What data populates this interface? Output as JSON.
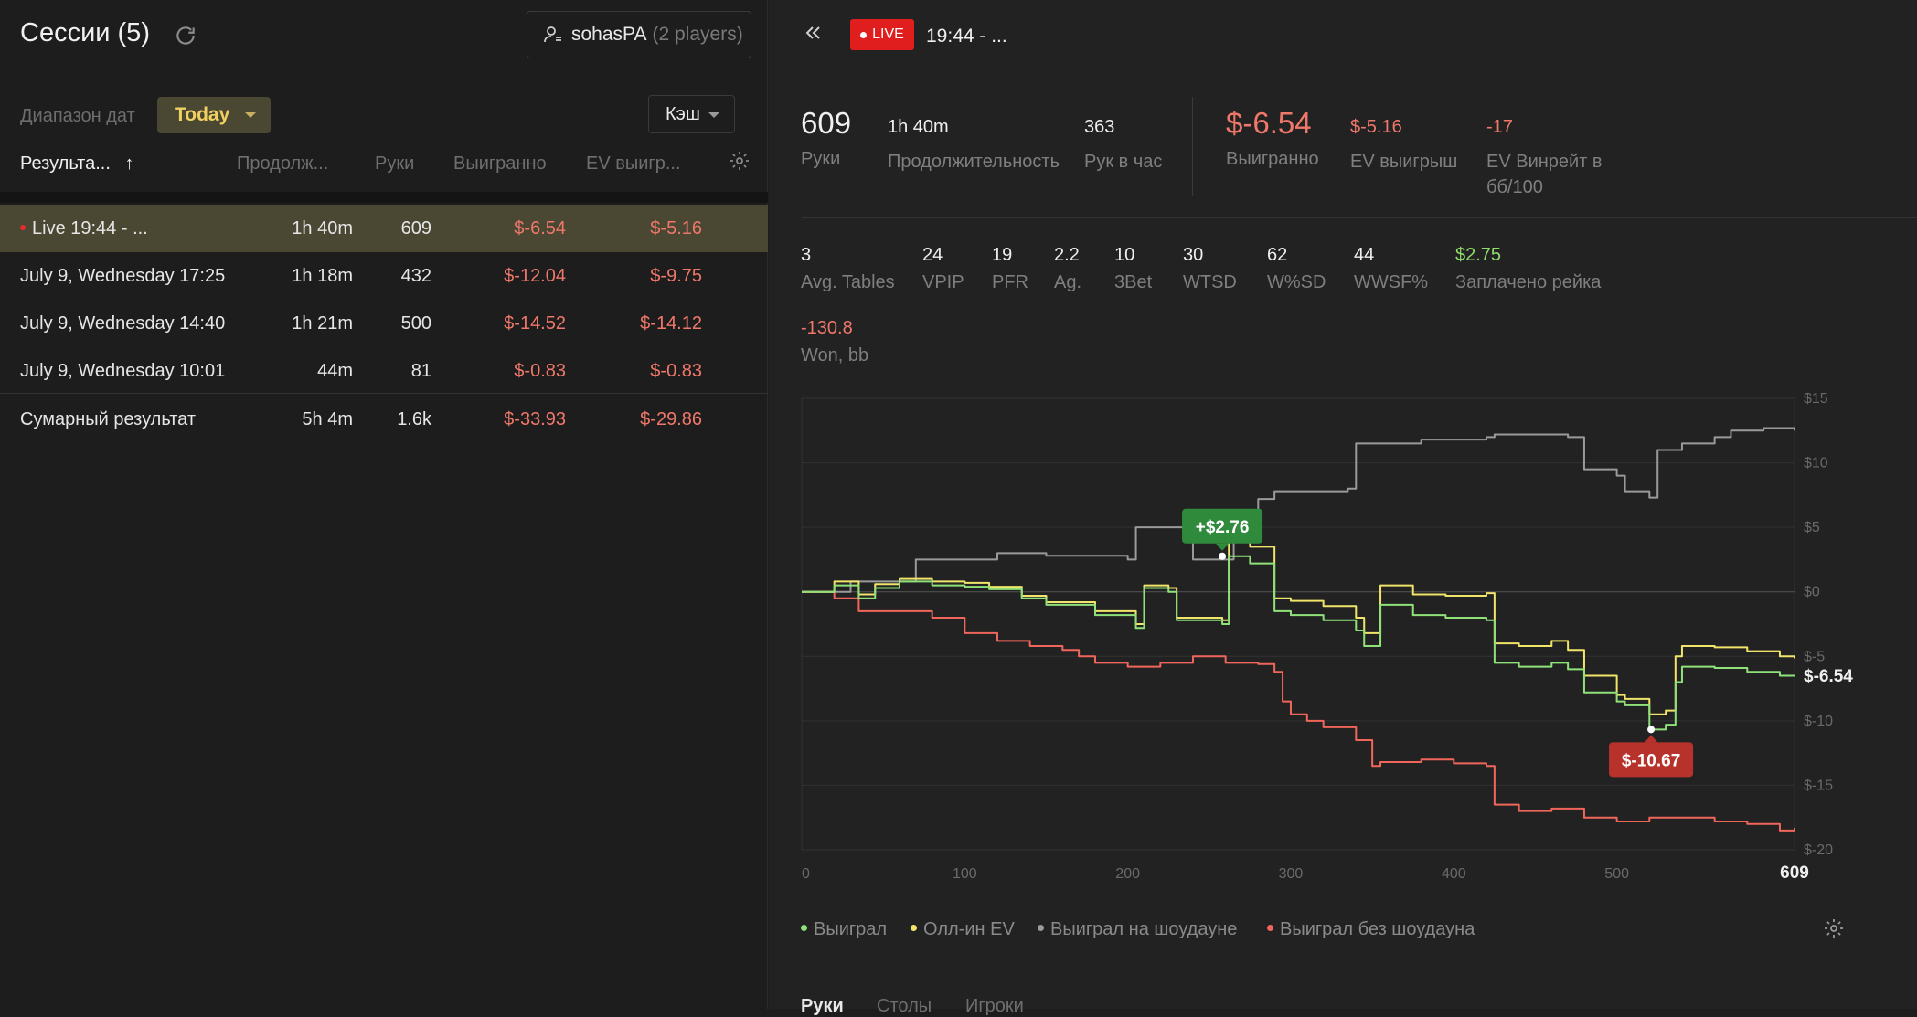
{
  "sessions": {
    "title": "Сессии (5)",
    "player": {
      "name": "sohasPA",
      "count": "(2 players)"
    },
    "date_range_label": "Диапазон дат",
    "date_range_value": "Today",
    "game_type": "Кэш",
    "columns": [
      "Результа...",
      "Продолж...",
      "Руки",
      "Выигранно",
      "EV выигр..."
    ],
    "sort_indicator": "↑",
    "rows": [
      {
        "name": "Live 19:44 - ...",
        "duration": "1h 40m",
        "hands": "609",
        "won": "$-6.54",
        "ev": "$-5.16"
      },
      {
        "name": "July 9, Wednesday 17:25",
        "duration": "1h 18m",
        "hands": "432",
        "won": "$-12.04",
        "ev": "$-9.75"
      },
      {
        "name": "July 9, Wednesday 14:40",
        "duration": "1h 21m",
        "hands": "500",
        "won": "$-14.52",
        "ev": "$-14.12"
      },
      {
        "name": "July 9, Wednesday 10:01",
        "duration": "44m",
        "hands": "81",
        "won": "$-0.83",
        "ev": "$-0.83"
      }
    ],
    "total": {
      "name": "Сумарный результат",
      "duration": "5h 4m",
      "hands": "1.6k",
      "won": "$-33.93",
      "ev": "$-29.86"
    }
  },
  "detail": {
    "live_label": "LIVE",
    "session_title": "19:44 - ...",
    "top_stats": [
      {
        "value": "609",
        "label": "Руки"
      },
      {
        "value": "1h 40m",
        "label": "Продолжительность"
      },
      {
        "value": "363",
        "label": "Рук в час"
      },
      {
        "value": "$-6.54",
        "label": "Выигранно"
      },
      {
        "value": "$-5.16",
        "label": "EV выигрыш"
      },
      {
        "value": "-17",
        "label": "EV Винрейт в бб/100"
      }
    ],
    "mid_stats": [
      {
        "value": "3",
        "label": "Avg. Tables"
      },
      {
        "value": "24",
        "label": "VPIP"
      },
      {
        "value": "19",
        "label": "PFR"
      },
      {
        "value": "2.2",
        "label": "Ag."
      },
      {
        "value": "10",
        "label": "3Bet"
      },
      {
        "value": "30",
        "label": "WTSD"
      },
      {
        "value": "62",
        "label": "W%SD"
      },
      {
        "value": "44",
        "label": "WWSF%"
      },
      {
        "value": "$2.75",
        "label": "Заплачено рейка"
      }
    ],
    "won_bb": {
      "value": "-130.8",
      "label": "Won, bb"
    },
    "legend": [
      {
        "name": "Выиграл",
        "color": "#8fe27a"
      },
      {
        "name": "Олл-ин EV",
        "color": "#f0e46a"
      },
      {
        "name": "Выиграл на шоудауне",
        "color": "#9a9a9a"
      },
      {
        "name": "Выиграл без шоудауна",
        "color": "#f0665a"
      }
    ],
    "tabs": [
      "Руки",
      "Столы",
      "Игроки"
    ]
  },
  "chart_data": {
    "type": "line",
    "xlabel": "",
    "ylabel": "",
    "xlim": [
      0,
      609
    ],
    "ylim": [
      -20,
      15
    ],
    "x_ticks": [
      "0",
      "100",
      "200",
      "300",
      "400",
      "500",
      "609"
    ],
    "y_ticks": [
      "$15",
      "$10",
      "$5",
      "$0",
      "$-5",
      "$-10",
      "$-15",
      "$-20"
    ],
    "y_tick_values": [
      15,
      10,
      5,
      0,
      -5,
      -10,
      -15,
      -20
    ],
    "end_label": "$-6.54",
    "annotations": [
      {
        "x": 258,
        "y": 2.76,
        "text": "+$2.76",
        "kind": "max"
      },
      {
        "x": 521,
        "y": -10.67,
        "text": "$-10.67",
        "kind": "min"
      }
    ],
    "series": [
      {
        "name": "Выиграл",
        "color": "#8fe27a",
        "x": [
          0,
          20,
          35,
          45,
          60,
          80,
          100,
          115,
          135,
          150,
          180,
          205,
          210,
          225,
          230,
          258,
          262,
          275,
          290,
          300,
          320,
          340,
          345,
          355,
          375,
          395,
          420,
          425,
          440,
          460,
          470,
          480,
          500,
          505,
          520,
          530,
          536,
          540,
          560,
          580,
          600,
          609
        ],
        "y": [
          0,
          0.5,
          -0.5,
          0.3,
          0.8,
          0.5,
          0.4,
          0.2,
          -0.5,
          -1.0,
          -1.8,
          -2.8,
          0.3,
          0.0,
          -2.2,
          -2.5,
          2.76,
          2.2,
          -1.5,
          -1.8,
          -2.2,
          -3.0,
          -4.2,
          -1.0,
          -1.8,
          -2.0,
          -2.2,
          -5.5,
          -5.8,
          -5.5,
          -6.0,
          -7.8,
          -8.5,
          -8.8,
          -10.67,
          -10.3,
          -7.0,
          -5.8,
          -5.9,
          -6.2,
          -6.5,
          -6.54
        ]
      },
      {
        "name": "Олл-ин EV",
        "color": "#f0e46a",
        "x": [
          0,
          20,
          35,
          45,
          60,
          80,
          100,
          115,
          135,
          150,
          180,
          205,
          210,
          225,
          230,
          258,
          262,
          275,
          290,
          300,
          320,
          340,
          345,
          355,
          375,
          395,
          420,
          425,
          440,
          460,
          470,
          480,
          500,
          505,
          520,
          530,
          536,
          540,
          560,
          580,
          600,
          609
        ],
        "y": [
          0,
          0.8,
          -0.2,
          0.6,
          1.0,
          0.8,
          0.7,
          0.4,
          -0.3,
          -0.8,
          -1.5,
          -2.5,
          0.5,
          0.3,
          -2.0,
          -2.2,
          4.0,
          3.5,
          -0.5,
          -0.7,
          -1.1,
          -2.0,
          -3.2,
          0.5,
          -0.2,
          -0.3,
          -0.1,
          -4.0,
          -4.2,
          -3.8,
          -4.5,
          -6.5,
          -8.0,
          -8.3,
          -9.5,
          -9.2,
          -5.0,
          -4.2,
          -4.3,
          -4.6,
          -5.0,
          -5.16
        ]
      },
      {
        "name": "Выиграл на шоудауне",
        "color": "#9a9a9a",
        "x": [
          0,
          30,
          65,
          70,
          120,
          150,
          200,
          205,
          230,
          240,
          258,
          265,
          270,
          275,
          280,
          290,
          335,
          340,
          380,
          420,
          425,
          470,
          480,
          500,
          505,
          520,
          525,
          540,
          560,
          570,
          590,
          609
        ],
        "y": [
          0,
          0.8,
          0.8,
          2.5,
          3.0,
          2.8,
          2.5,
          5.0,
          5.0,
          2.5,
          2.5,
          4.5,
          4.0,
          6.0,
          7.2,
          7.8,
          8.0,
          11.5,
          11.8,
          12.0,
          12.2,
          12.0,
          9.5,
          9.0,
          7.8,
          7.3,
          11.0,
          11.5,
          12.0,
          12.5,
          12.7,
          12.5
        ]
      },
      {
        "name": "Выиграл без шоудауна",
        "color": "#f0665a",
        "x": [
          0,
          20,
          35,
          60,
          80,
          100,
          120,
          140,
          160,
          170,
          180,
          200,
          220,
          240,
          260,
          280,
          290,
          295,
          300,
          310,
          320,
          340,
          350,
          355,
          380,
          400,
          420,
          425,
          440,
          460,
          480,
          500,
          520,
          540,
          560,
          580,
          600,
          609
        ],
        "y": [
          0,
          -0.5,
          -1.5,
          -1.5,
          -2.0,
          -3.2,
          -3.8,
          -4.2,
          -4.5,
          -5.0,
          -5.5,
          -5.8,
          -5.5,
          -5.0,
          -5.5,
          -5.6,
          -6.2,
          -8.5,
          -9.5,
          -10.0,
          -10.5,
          -11.5,
          -13.5,
          -13.2,
          -13.0,
          -13.3,
          -13.5,
          -16.5,
          -17.0,
          -16.8,
          -17.5,
          -17.8,
          -17.5,
          -17.5,
          -17.8,
          -18.0,
          -18.5,
          -18.3
        ]
      }
    ]
  }
}
